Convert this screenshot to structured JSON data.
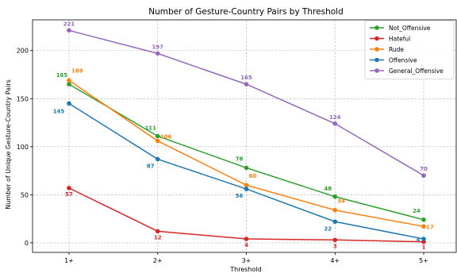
{
  "chart_data": {
    "type": "line",
    "title": "Number of Gesture-Country Pairs by Threshold",
    "xlabel": "Threshold",
    "ylabel": "Number of Unique Gesture-Country Pairs",
    "categories": [
      "1+",
      "2+",
      "3+",
      "4+",
      "5+"
    ],
    "ylim": [
      -10,
      232
    ],
    "yticks": [
      0,
      50,
      100,
      150,
      200
    ],
    "grid": true,
    "legend_position": "top-right",
    "series": [
      {
        "name": "Not_Offensive",
        "color": "#2ca02c",
        "values": [
          165,
          111,
          78,
          48,
          24
        ]
      },
      {
        "name": "Hateful",
        "color": "#d62728",
        "values": [
          57,
          12,
          4,
          3,
          1
        ]
      },
      {
        "name": "Rude",
        "color": "#ff7f0e",
        "values": [
          169,
          106,
          60,
          34,
          17
        ]
      },
      {
        "name": "Offensive",
        "color": "#1f77b4",
        "values": [
          145,
          87,
          56,
          22,
          4
        ]
      },
      {
        "name": "General_Offensive",
        "color": "#9467bd",
        "values": [
          221,
          197,
          165,
          124,
          70
        ]
      }
    ]
  }
}
